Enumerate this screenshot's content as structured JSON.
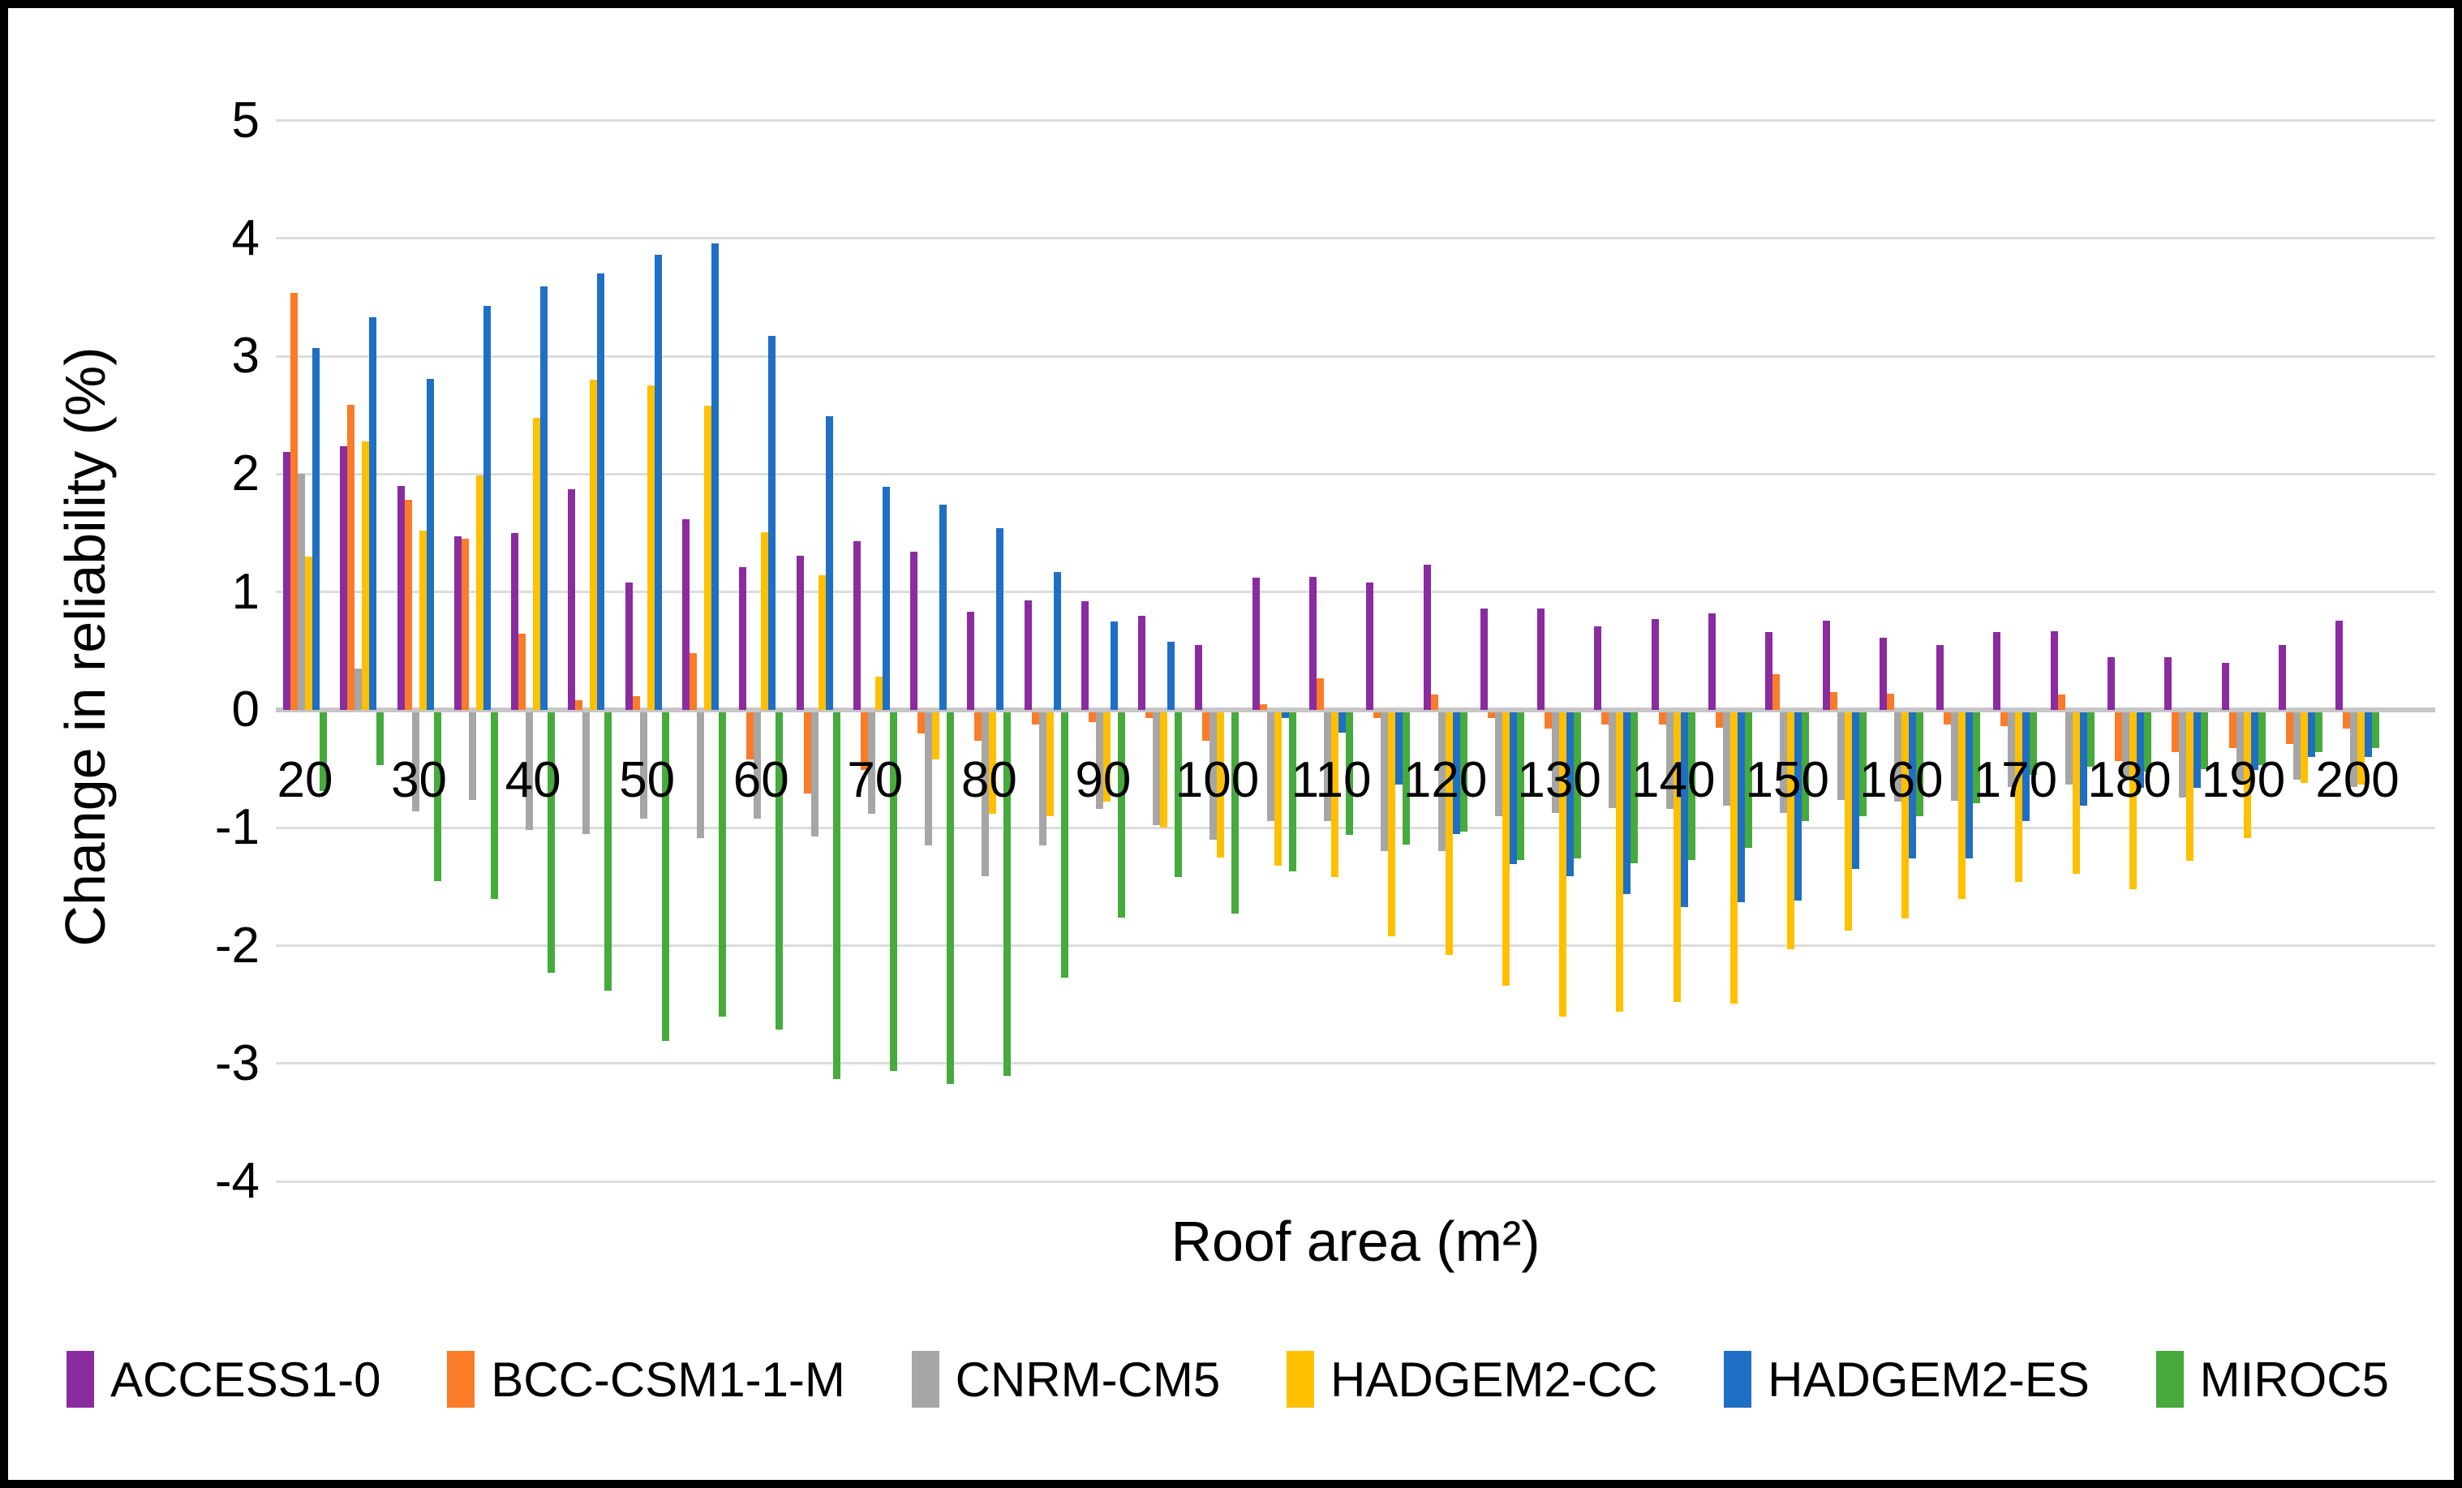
{
  "chart_data": {
    "type": "bar",
    "title": "",
    "xlabel": "Roof area (m²)",
    "ylabel": "Change in reliability (%)",
    "ylim": [
      -4,
      5
    ],
    "y_ticks": [
      "5",
      "4",
      "3",
      "2",
      "1",
      "0",
      "-1",
      "-2",
      "-3",
      "-4"
    ],
    "x_tick_labels": [
      "20",
      "30",
      "40",
      "50",
      "60",
      "70",
      "80",
      "90",
      "100",
      "110",
      "120",
      "130",
      "140",
      "150",
      "160",
      "170",
      "180",
      "190",
      "200"
    ],
    "grid": "horizontal",
    "legend_position": "bottom",
    "categories": [
      20,
      25,
      30,
      35,
      40,
      45,
      50,
      55,
      60,
      65,
      70,
      75,
      80,
      85,
      90,
      95,
      100,
      105,
      110,
      115,
      120,
      125,
      130,
      135,
      140,
      145,
      150,
      155,
      160,
      165,
      170,
      175,
      180,
      185,
      190,
      195,
      200
    ],
    "series": [
      {
        "name": "ACCESS1-0",
        "color": "#8A2BA0",
        "values": [
          2.19,
          2.24,
          1.9,
          1.47,
          1.5,
          1.87,
          1.08,
          1.62,
          1.21,
          1.31,
          1.43,
          1.34,
          0.83,
          0.93,
          0.92,
          0.8,
          0.55,
          1.12,
          1.13,
          1.08,
          1.23,
          0.86,
          0.86,
          0.71,
          0.77,
          0.82,
          0.66,
          0.76,
          0.61,
          0.55,
          0.66,
          0.67,
          0.45,
          0.45,
          0.4,
          0.55,
          0.76
        ]
      },
      {
        "name": "BCC-CSM1-1-M",
        "color": "#FB7B28",
        "values": [
          3.54,
          2.59,
          1.78,
          1.45,
          0.65,
          0.08,
          0.12,
          0.48,
          -0.4,
          -0.69,
          -0.49,
          -0.18,
          -0.24,
          -0.1,
          -0.08,
          -0.05,
          -0.24,
          0.05,
          0.27,
          -0.05,
          0.13,
          -0.05,
          -0.14,
          -0.1,
          -0.1,
          -0.13,
          0.3,
          0.15,
          0.14,
          -0.1,
          -0.12,
          0.13,
          -0.41,
          -0.34,
          -0.3,
          -0.27,
          -0.14
        ]
      },
      {
        "name": "CNRM-CM5",
        "color": "#A6A6A6",
        "values": [
          2.0,
          0.35,
          -0.84,
          -0.74,
          -1.0,
          -1.03,
          -0.9,
          -1.07,
          -0.9,
          -1.05,
          -0.86,
          -1.13,
          -1.39,
          -1.13,
          -0.82,
          -0.96,
          -1.08,
          -0.92,
          -0.92,
          -1.18,
          -1.18,
          -0.88,
          -0.85,
          -0.81,
          -0.82,
          -0.79,
          -0.85,
          -0.74,
          -0.76,
          -0.75,
          -0.63,
          -0.61,
          -0.57,
          -0.72,
          -0.61,
          -0.57,
          -0.63
        ]
      },
      {
        "name": "HADGEM2-CC",
        "color": "#FFC000",
        "values": [
          1.3,
          2.28,
          1.52,
          1.99,
          2.48,
          2.8,
          2.75,
          2.58,
          1.51,
          1.14,
          0.28,
          -0.4,
          -0.86,
          -0.88,
          -0.76,
          -0.98,
          -1.23,
          -1.3,
          -1.4,
          -1.9,
          -2.06,
          -2.32,
          -2.58,
          -2.54,
          -2.46,
          -2.47,
          -2.01,
          -1.85,
          -1.75,
          -1.58,
          -1.44,
          -1.37,
          -1.5,
          -1.26,
          -1.07,
          -0.6,
          -0.61
        ]
      },
      {
        "name": "HADGEM2-ES",
        "color": "#1F6FC5",
        "values": [
          3.07,
          3.33,
          2.81,
          3.43,
          3.59,
          3.7,
          3.86,
          3.96,
          3.17,
          2.49,
          1.89,
          1.74,
          1.54,
          1.17,
          0.75,
          0.58,
          0.0,
          -0.05,
          -0.17,
          -0.61,
          -1.03,
          -1.29,
          -1.39,
          -1.54,
          -1.65,
          -1.61,
          -1.6,
          -1.33,
          -1.24,
          -1.24,
          -0.92,
          -0.79,
          -0.64,
          -0.64,
          -0.49,
          -0.38,
          -0.38
        ]
      },
      {
        "name": "MIROC5",
        "color": "#46AA3C",
        "values": [
          -0.67,
          -0.45,
          -1.43,
          -1.58,
          -2.21,
          -2.36,
          -2.79,
          -2.58,
          -2.69,
          -3.11,
          -3.04,
          -3.15,
          -3.08,
          -2.25,
          -1.74,
          -1.4,
          -1.71,
          -1.35,
          -1.04,
          -1.12,
          -1.01,
          -1.25,
          -1.24,
          -1.28,
          -1.25,
          -1.15,
          -0.92,
          -0.88,
          -0.88,
          -0.77,
          -0.53,
          -0.46,
          -0.5,
          -0.48,
          -0.45,
          -0.34,
          -0.3
        ]
      }
    ]
  }
}
